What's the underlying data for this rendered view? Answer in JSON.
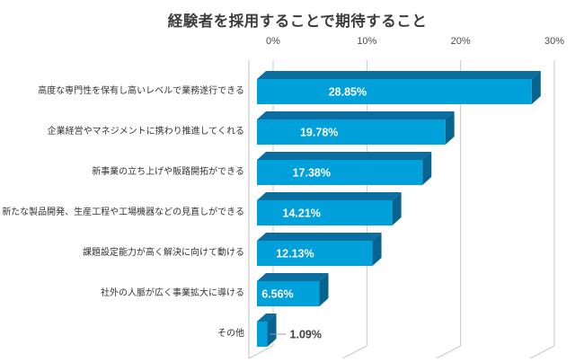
{
  "chart_data": {
    "type": "bar",
    "orientation": "horizontal",
    "style_3d": true,
    "title": "経験者を採用することで期待すること",
    "categories": [
      "高度な専門性を保有し高いレベルで業務遂行できる",
      "企業経営やマネジメントに携わり推進してくれる",
      "新事業の立ち上げや販路開拓ができる",
      "新たな製品開発、生産工程や工場機器などの見直しができる",
      "課題設定能力が高く解決に向けて動ける",
      "社外の人脈が広く事業拡大に導ける",
      "その他"
    ],
    "values": [
      28.85,
      19.78,
      17.38,
      14.21,
      12.13,
      6.56,
      1.09
    ],
    "value_labels": [
      "28.85%",
      "19.78%",
      "17.38%",
      "14.21%",
      "12.13%",
      "6.56%",
      "1.09%"
    ],
    "x_ticks": [
      "0%",
      "10%",
      "20%",
      "30%"
    ],
    "xlim": [
      0,
      30
    ],
    "grid": true,
    "legend": "none",
    "colors": {
      "bar_front": "#00a0da",
      "bar_top": "#0a6fa0",
      "bar_side": "#08638f",
      "grid": "#c9c9c9",
      "axis": "#bfbfbf",
      "leader": "#9e9e9e",
      "label_inside": "#ffffff",
      "label_outside": "#404040",
      "title_color": "#3d3d3d",
      "tick_color": "#4d4d4d",
      "category_color": "#333333"
    }
  }
}
